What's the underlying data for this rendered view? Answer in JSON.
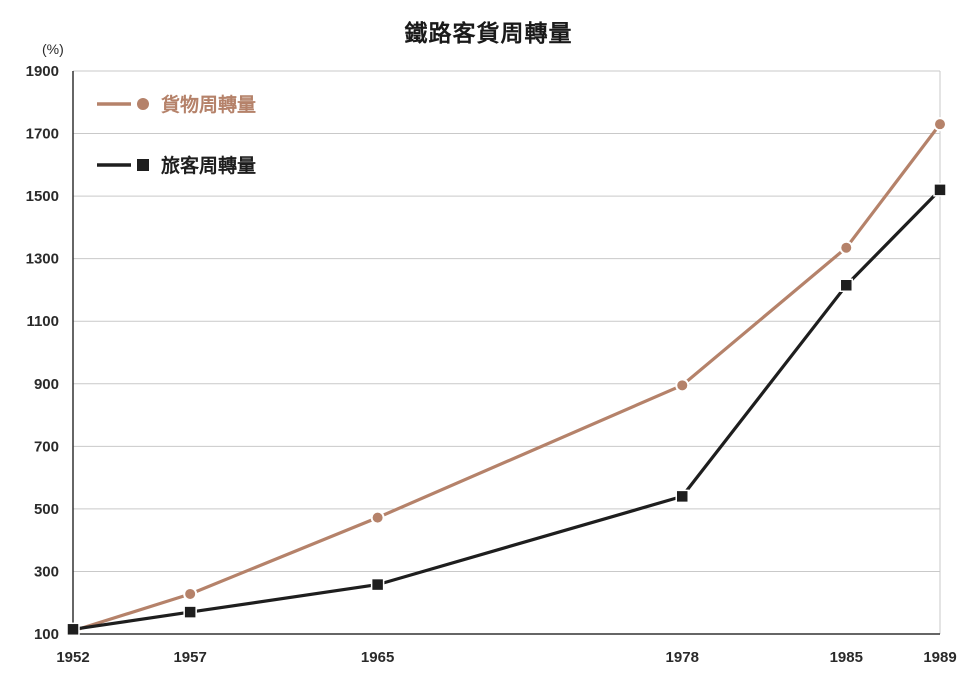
{
  "chart_data": {
    "type": "line",
    "title": "鐵路客貨周轉量",
    "ylabel": "(%)",
    "x": [
      1952,
      1957,
      1965,
      1978,
      1985,
      1989
    ],
    "x_tick_labels": [
      "1952",
      "1957",
      "1965",
      "1978",
      "1985",
      "1989"
    ],
    "y_ticks": [
      "1900",
      "1700",
      "1500",
      "1300",
      "1100",
      "900",
      "700",
      "500",
      "300",
      "100"
    ],
    "ylim": [
      100,
      1900
    ],
    "grid": true,
    "legend_position": "top-left",
    "series": [
      {
        "name": "貨物周轉量",
        "values": [
          110,
          228,
          472,
          895,
          1335,
          1730
        ],
        "color": "#b5826a",
        "marker": "circle"
      },
      {
        "name": "旅客周轉量",
        "values": [
          115,
          170,
          258,
          540,
          1215,
          1520
        ],
        "color": "#1e1e1e",
        "marker": "square"
      }
    ]
  }
}
